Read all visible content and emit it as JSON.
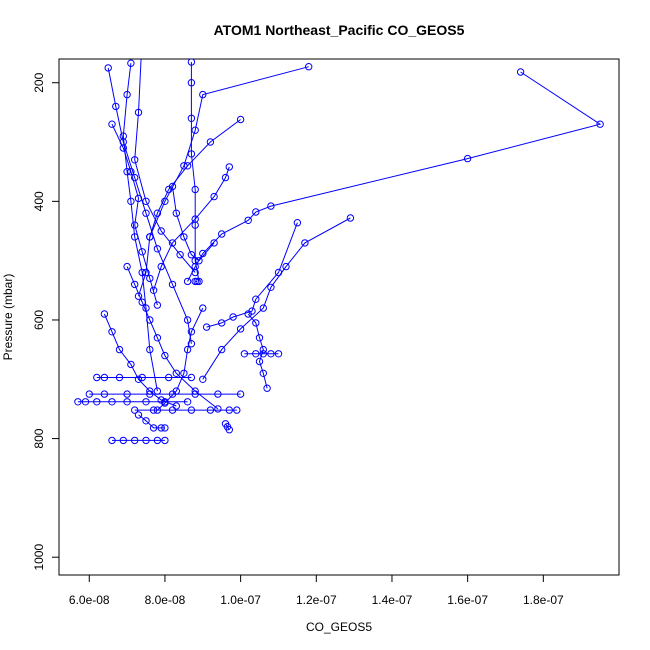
{
  "chart_data": {
    "type": "scatter",
    "title": "ATOM1 Northeast_Pacific CO_GEOS5",
    "xlabel": "CO_GEOS5",
    "ylabel": "Pressure (mbar)",
    "xlim": [
      5.2e-08,
      2e-07
    ],
    "ylim": [
      1030,
      160
    ],
    "y_reversed": true,
    "x_ticks": [
      6e-08,
      8e-08,
      1e-07,
      1.2e-07,
      1.4e-07,
      1.6e-07,
      1.8e-07
    ],
    "x_tick_labels": [
      "6.0e-08",
      "8.0e-08",
      "1.0e-07",
      "1.2e-07",
      "1.4e-07",
      "1.6e-07",
      "1.8e-07"
    ],
    "y_ticks": [
      200,
      400,
      600,
      800,
      1000
    ],
    "y_tick_labels": [
      "200",
      "400",
      "600",
      "800",
      "1000"
    ],
    "grid": false,
    "legend": "none",
    "point_style": "open-circle",
    "line_style": "solid",
    "color": "#0000ff",
    "series": [
      {
        "x": [
          1.74e-07,
          1.95e-07,
          1.6e-07,
          1.08e-07,
          1.04e-07,
          1.02e-07,
          9.5e-08,
          9e-08,
          8.8e-08,
          8.6e-08
        ],
        "y": [
          182,
          270,
          328,
          408,
          418,
          432,
          455,
          488,
          510,
          535
        ]
      },
      {
        "x": [
          1.18e-07,
          9e-08,
          8.8e-08,
          8.5e-08,
          8e-08,
          7.6e-08,
          7.5e-08,
          7.3e-08
        ],
        "y": [
          173,
          220,
          280,
          340,
          400,
          460,
          520,
          560
        ]
      },
      {
        "x": [
          1.29e-07,
          1.17e-07,
          1.12e-07,
          1.08e-07,
          1.06e-07,
          1e-07,
          9.5e-08,
          9e-08
        ],
        "y": [
          428,
          470,
          510,
          545,
          580,
          615,
          650,
          700
        ]
      },
      {
        "x": [
          1.15e-07,
          1.1e-07,
          1.04e-07,
          1.03e-07,
          9.8e-08,
          9.5e-08,
          9.1e-08
        ],
        "y": [
          436,
          520,
          565,
          585,
          595,
          605,
          612
        ]
      },
      {
        "x": [
          9e-08,
          8.7e-08,
          8.6e-08,
          8.5e-08,
          8.3e-08,
          8e-08,
          7.8e-08
        ],
        "y": [
          580,
          620,
          650,
          690,
          720,
          740,
          752
        ]
      },
      {
        "x": [
          7.1e-08,
          7e-08,
          6.9e-08,
          7e-08,
          7.1e-08,
          7.2e-08,
          7.4e-08,
          7.5e-08,
          7.6e-08,
          7.8e-08
        ],
        "y": [
          167,
          220,
          290,
          350,
          400,
          460,
          520,
          580,
          650,
          720
        ]
      },
      {
        "x": [
          6.5e-08,
          6.7e-08,
          6.9e-08,
          7.2e-08,
          7.5e-08,
          7.8e-08,
          8.2e-08,
          8.6e-08,
          8.7e-08
        ],
        "y": [
          175,
          240,
          300,
          360,
          420,
          480,
          540,
          600,
          640
        ]
      },
      {
        "x": [
          8.7e-08,
          8.7e-08,
          8.7e-08,
          8.7e-08,
          8.8e-08,
          8.8e-08,
          8.8e-08,
          8.9e-08
        ],
        "y": [
          165,
          200,
          260,
          320,
          380,
          440,
          500,
          535
        ]
      },
      {
        "x": [
          1e-07,
          9.2e-08,
          8.6e-08,
          8.1e-08,
          7.8e-08,
          7.6e-08
        ],
        "y": [
          262,
          300,
          340,
          380,
          420,
          460
        ]
      },
      {
        "x": [
          9.7e-08,
          9.6e-08,
          9.3e-08,
          8.8e-08,
          8.2e-08,
          7.9e-08,
          7.7e-08
        ],
        "y": [
          342,
          360,
          392,
          430,
          470,
          510,
          550
        ]
      },
      {
        "x": [
          6.4e-08,
          6.6e-08,
          6.8e-08,
          7.1e-08,
          7.3e-08,
          7.6e-08,
          7.9e-08,
          8.3e-08
        ],
        "y": [
          590,
          620,
          650,
          675,
          700,
          720,
          735,
          745
        ]
      },
      {
        "x": [
          7e-08,
          7.2e-08,
          7.4e-08,
          7.6e-08,
          7.8e-08,
          8e-08,
          8.3e-08,
          8.8e-08,
          9.4e-08
        ],
        "y": [
          510,
          540,
          570,
          600,
          630,
          660,
          690,
          720,
          750
        ]
      },
      {
        "x": [
          6.6e-08,
          6.9e-08,
          7.1e-08,
          7.3e-08,
          7.2e-08,
          7.4e-08,
          7.6e-08,
          7.8e-08
        ],
        "y": [
          270,
          310,
          350,
          395,
          440,
          485,
          530,
          575
        ]
      },
      {
        "x": [
          7.4e-08,
          7.3e-08,
          7.2e-08,
          7.5e-08,
          7.9e-08,
          8.4e-08,
          8.8e-08
        ],
        "y": [
          120,
          250,
          330,
          400,
          450,
          490,
          520
        ]
      },
      {
        "x": [
          8.2e-08,
          8.3e-08,
          8.5e-08,
          8.7e-08,
          8.9e-08,
          9.3e-08
        ],
        "y": [
          375,
          420,
          460,
          490,
          500,
          470
        ]
      },
      {
        "x": [
          1.02e-07,
          1.04e-07,
          1.05e-07,
          1.06e-07,
          1.05e-07,
          1.06e-07,
          1.07e-07
        ],
        "y": [
          590,
          605,
          630,
          650,
          670,
          690,
          715
        ]
      },
      {
        "x": [
          6.2e-08,
          6.4e-08,
          6.8e-08,
          7.4e-08,
          8.1e-08,
          8.7e-08
        ],
        "y": [
          697,
          697,
          697,
          697,
          697,
          697
        ]
      },
      {
        "x": [
          5.7e-08,
          5.9e-08,
          6.2e-08,
          6.6e-08,
          7e-08,
          7.5e-08,
          8e-08,
          8.6e-08
        ],
        "y": [
          738,
          738,
          738,
          738,
          738,
          738,
          738,
          738
        ]
      },
      {
        "x": [
          6e-08,
          6.4e-08,
          7e-08,
          7.6e-08,
          8.2e-08,
          8.8e-08,
          9.4e-08,
          1e-07
        ],
        "y": [
          725,
          725,
          725,
          725,
          725,
          725,
          725,
          725
        ]
      },
      {
        "x": [
          7.2e-08,
          7.7e-08,
          8.2e-08,
          8.7e-08,
          9.2e-08,
          9.7e-08,
          9.9e-08
        ],
        "y": [
          752,
          752,
          752,
          752,
          752,
          752,
          752
        ]
      },
      {
        "x": [
          1.01e-07,
          1.04e-07,
          1.06e-07,
          1.08e-07,
          1.1e-07
        ],
        "y": [
          657,
          657,
          657,
          657,
          657
        ]
      },
      {
        "x": [
          6.6e-08,
          6.9e-08,
          7.2e-08,
          7.5e-08,
          7.8e-08,
          8e-08
        ],
        "y": [
          803,
          803,
          803,
          803,
          803,
          803
        ]
      },
      {
        "x": [
          7.3e-08,
          7.5e-08,
          7.7e-08,
          7.9e-08,
          8e-08
        ],
        "y": [
          760,
          770,
          782,
          782,
          782
        ]
      },
      {
        "x": [
          9.6e-08,
          9.65e-08,
          9.7e-08
        ],
        "y": [
          775,
          780,
          785
        ]
      },
      {
        "x": [
          8.8e-08,
          8.85e-08
        ],
        "y": [
          535,
          535
        ]
      }
    ]
  }
}
